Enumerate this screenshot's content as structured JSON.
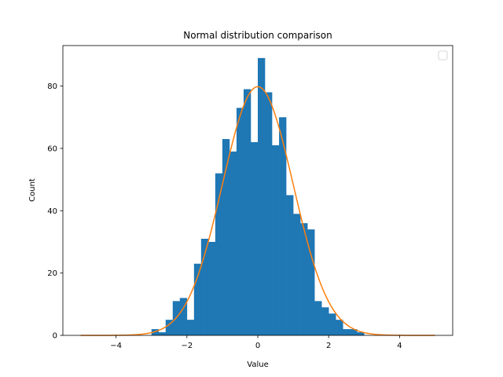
{
  "chart_data": {
    "type": "bar",
    "title": "Normal distribution comparison",
    "xlabel": "Value",
    "ylabel": "Count",
    "xlim": [
      -5.5,
      5.5
    ],
    "ylim": [
      0,
      93
    ],
    "xticks": [
      -4,
      -2,
      0,
      2,
      4
    ],
    "xtick_labels": [
      "−4",
      "−2",
      "0",
      "2",
      "4"
    ],
    "yticks": [
      0,
      20,
      40,
      60,
      80
    ],
    "ytick_labels": [
      "0",
      "20",
      "40",
      "60",
      "80"
    ],
    "grid": false,
    "legend": "top-right",
    "bar_color": "#1f77b4",
    "line_color": "#ff7f0e",
    "histogram": {
      "bin_edges": [
        -3.0,
        -2.8,
        -2.6,
        -2.4,
        -2.2,
        -2.0,
        -1.8,
        -1.6,
        -1.4,
        -1.2,
        -1.0,
        -0.8,
        -0.6,
        -0.4,
        -0.2,
        0.0,
        0.2,
        0.4,
        0.6,
        0.8,
        1.0,
        1.2,
        1.4,
        1.6,
        1.8,
        2.0,
        2.2,
        2.4,
        2.6,
        2.8,
        3.0
      ],
      "counts": [
        2,
        1,
        5,
        11,
        12,
        5,
        23,
        31,
        30,
        52,
        63,
        59,
        73,
        79,
        62,
        89,
        78,
        61,
        70,
        45,
        39,
        36,
        34,
        11,
        9,
        7,
        5,
        2,
        2,
        1
      ]
    },
    "curve": {
      "type": "normal_pdf_scaled",
      "mean": 0,
      "std": 1,
      "peak": 79.8,
      "x_range": [
        -5,
        5
      ]
    }
  }
}
